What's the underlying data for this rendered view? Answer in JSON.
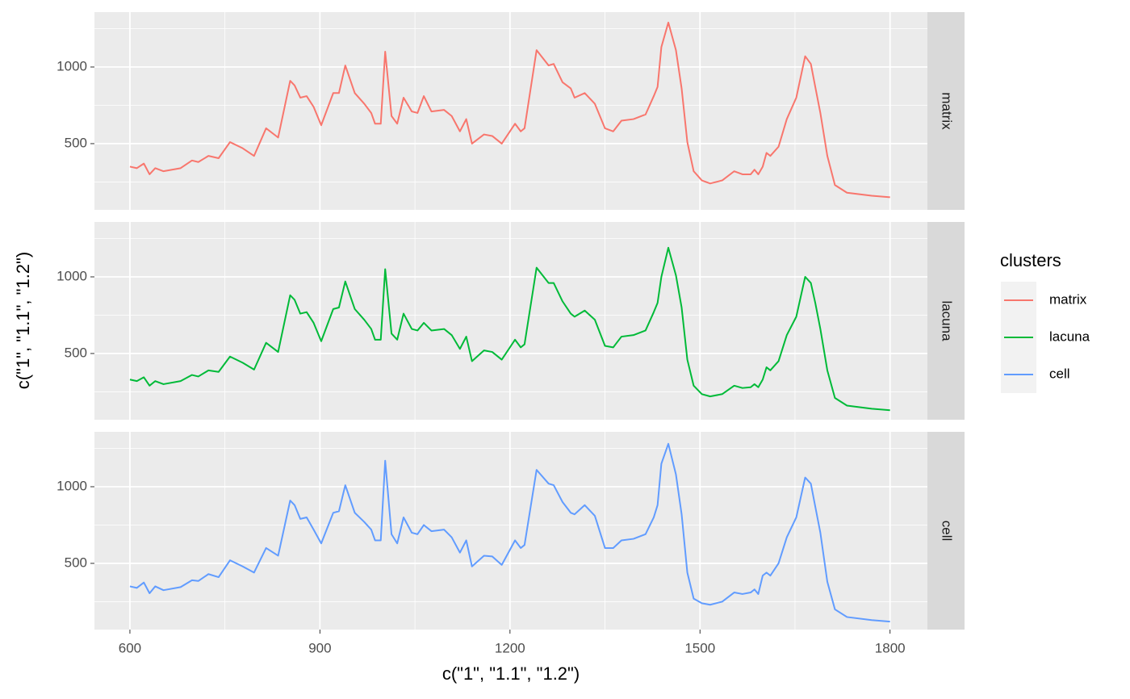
{
  "chart_data": {
    "type": "line",
    "xlabel": "c(\"1\", \"1.1\", \"1.2\")",
    "ylabel": "c(\"1\", \"1.1\", \"1.2\")",
    "legend_title": "clusters",
    "legend": "right",
    "grid": true,
    "xlim": [
      544,
      1859
    ],
    "ylim": [
      68,
      1358
    ],
    "xticks": [
      600,
      900,
      1200,
      1500,
      1800
    ],
    "yticks": [
      500,
      1000
    ],
    "x_minor_grid": [
      750,
      1050,
      1350,
      1650
    ],
    "y_minor_grid": [
      250,
      750,
      1250
    ],
    "x": [
      600,
      611,
      622,
      631,
      640,
      653,
      680,
      698,
      708,
      724,
      740,
      758,
      778,
      796,
      815,
      834,
      853,
      860,
      869,
      879,
      890,
      902,
      921,
      930,
      940,
      955,
      970,
      981,
      987,
      996,
      1003,
      1013,
      1022,
      1032,
      1045,
      1054,
      1064,
      1076,
      1096,
      1108,
      1121,
      1131,
      1140,
      1159,
      1172,
      1187,
      1208,
      1217,
      1223,
      1242,
      1261,
      1269,
      1283,
      1296,
      1302,
      1318,
      1334,
      1350,
      1363,
      1376,
      1395,
      1414,
      1427,
      1433,
      1439,
      1450,
      1462,
      1471,
      1480,
      1490,
      1503,
      1516,
      1535,
      1554,
      1567,
      1580,
      1586,
      1592,
      1599,
      1605,
      1611,
      1624,
      1637,
      1652,
      1666,
      1675,
      1682,
      1690,
      1701,
      1713,
      1732,
      1771,
      1800
    ],
    "series": [
      {
        "name": "matrix",
        "color": "#F8766D",
        "values": [
          350,
          340,
          370,
          300,
          340,
          320,
          340,
          390,
          380,
          420,
          405,
          510,
          470,
          420,
          600,
          540,
          910,
          880,
          800,
          810,
          740,
          620,
          830,
          830,
          1010,
          830,
          760,
          700,
          630,
          630,
          1100,
          680,
          630,
          800,
          710,
          700,
          810,
          710,
          720,
          680,
          580,
          660,
          500,
          560,
          550,
          500,
          630,
          580,
          600,
          1110,
          1010,
          1020,
          900,
          860,
          800,
          830,
          760,
          600,
          580,
          650,
          660,
          690,
          810,
          870,
          1130,
          1290,
          1110,
          860,
          510,
          320,
          260,
          240,
          260,
          320,
          300,
          300,
          330,
          300,
          350,
          440,
          420,
          480,
          660,
          800,
          1070,
          1020,
          870,
          700,
          420,
          230,
          180,
          160,
          150
        ]
      },
      {
        "name": "lacuna",
        "color": "#00BA38",
        "values": [
          330,
          320,
          345,
          290,
          320,
          300,
          320,
          360,
          350,
          390,
          380,
          480,
          440,
          395,
          570,
          510,
          880,
          850,
          760,
          770,
          700,
          580,
          790,
          800,
          970,
          790,
          720,
          660,
          590,
          590,
          1050,
          630,
          590,
          760,
          660,
          650,
          700,
          650,
          660,
          620,
          530,
          610,
          450,
          520,
          510,
          460,
          590,
          540,
          560,
          1060,
          960,
          960,
          840,
          760,
          740,
          780,
          720,
          550,
          540,
          610,
          620,
          650,
          770,
          830,
          1000,
          1190,
          1010,
          800,
          460,
          290,
          235,
          220,
          235,
          290,
          275,
          280,
          300,
          280,
          330,
          410,
          390,
          450,
          620,
          740,
          1000,
          960,
          830,
          660,
          390,
          210,
          160,
          140,
          130
        ]
      },
      {
        "name": "cell",
        "color": "#619CFF",
        "values": [
          350,
          340,
          375,
          305,
          350,
          325,
          345,
          390,
          385,
          430,
          410,
          520,
          480,
          440,
          600,
          550,
          910,
          880,
          790,
          800,
          720,
          630,
          830,
          840,
          1010,
          830,
          770,
          720,
          650,
          650,
          1170,
          690,
          630,
          800,
          700,
          690,
          750,
          710,
          720,
          670,
          570,
          650,
          480,
          550,
          545,
          490,
          650,
          600,
          620,
          1110,
          1020,
          1010,
          900,
          830,
          820,
          880,
          810,
          600,
          600,
          650,
          660,
          690,
          800,
          880,
          1150,
          1280,
          1080,
          820,
          440,
          270,
          240,
          230,
          250,
          310,
          300,
          310,
          330,
          300,
          420,
          440,
          420,
          500,
          670,
          800,
          1060,
          1020,
          870,
          700,
          380,
          200,
          150,
          130,
          120
        ]
      }
    ]
  }
}
